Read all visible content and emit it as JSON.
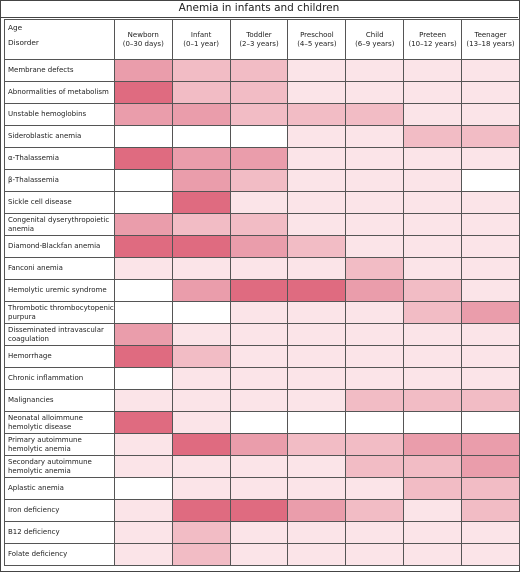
{
  "title": "Anemia in infants and children",
  "corner": {
    "top": "Age",
    "bottom": "Disorder"
  },
  "chart_data": {
    "type": "heatmap",
    "title": "Anemia in infants and children",
    "xlabel": "Age",
    "ylabel": "Disorder",
    "columns": [
      {
        "name": "Newborn",
        "range": "(0–30 days)"
      },
      {
        "name": "Infant",
        "range": "(0–1 year)"
      },
      {
        "name": "Toddler",
        "range": "(2–3 years)"
      },
      {
        "name": "Preschool",
        "range": "(4–5 years)"
      },
      {
        "name": "Child",
        "range": "(6–9 years)"
      },
      {
        "name": "Preteen",
        "range": "(10–12 years)"
      },
      {
        "name": "Teenager",
        "range": "(13–18 years)"
      }
    ],
    "rows": [
      {
        "label": "Membrane defects",
        "values": [
          3,
          2,
          2,
          1,
          1,
          1,
          1
        ]
      },
      {
        "label": "Abnormalities of metabolism",
        "values": [
          4,
          2,
          2,
          1,
          1,
          1,
          1
        ]
      },
      {
        "label": "Unstable hemoglobins",
        "values": [
          3,
          3,
          2,
          2,
          2,
          1,
          1
        ]
      },
      {
        "label": "Sideroblastic anemia",
        "values": [
          0,
          0,
          0,
          1,
          1,
          2,
          2
        ]
      },
      {
        "label": "α-Thalassemia",
        "values": [
          4,
          3,
          3,
          1,
          1,
          1,
          1
        ]
      },
      {
        "label": "β-Thalassemia",
        "values": [
          0,
          3,
          2,
          1,
          1,
          1,
          0
        ]
      },
      {
        "label": "Sickle cell disease",
        "values": [
          0,
          4,
          1,
          1,
          1,
          1,
          1
        ]
      },
      {
        "label": "Congenital dyserythropoietic anemia",
        "values": [
          3,
          2,
          2,
          1,
          1,
          1,
          1
        ]
      },
      {
        "label": "Diamond-Blackfan anemia",
        "values": [
          4,
          4,
          3,
          2,
          1,
          1,
          1
        ]
      },
      {
        "label": "Fanconi anemia",
        "values": [
          1,
          1,
          1,
          1,
          2,
          1,
          1
        ]
      },
      {
        "label": "Hemolytic uremic syndrome",
        "values": [
          0,
          3,
          4,
          4,
          3,
          2,
          1
        ]
      },
      {
        "label": "Thrombotic thrombocytopenic purpura",
        "values": [
          0,
          0,
          1,
          1,
          1,
          2,
          3
        ]
      },
      {
        "label": "Disseminated intravascular coagulation",
        "values": [
          3,
          1,
          1,
          1,
          1,
          1,
          1
        ]
      },
      {
        "label": "Hemorrhage",
        "values": [
          4,
          2,
          1,
          1,
          1,
          1,
          1
        ]
      },
      {
        "label": "Chronic inflammation",
        "values": [
          0,
          1,
          1,
          1,
          1,
          1,
          1
        ]
      },
      {
        "label": "Malignancies",
        "values": [
          1,
          1,
          1,
          1,
          2,
          2,
          2
        ]
      },
      {
        "label": "Neonatal alloimmune hemolytic disease",
        "values": [
          4,
          1,
          0,
          0,
          0,
          0,
          0
        ]
      },
      {
        "label": "Primary autoimmune hemolytic anemia",
        "values": [
          1,
          4,
          3,
          2,
          2,
          3,
          3
        ]
      },
      {
        "label": "Secondary autoimmune hemolytic anemia",
        "values": [
          1,
          1,
          1,
          1,
          2,
          2,
          3
        ]
      },
      {
        "label": "Aplastic anemia",
        "values": [
          0,
          1,
          1,
          1,
          1,
          2,
          2
        ]
      },
      {
        "label": "Iron deficiency",
        "values": [
          1,
          4,
          4,
          3,
          2,
          1,
          2
        ]
      },
      {
        "label": "B12 deficiency",
        "values": [
          1,
          2,
          1,
          1,
          1,
          1,
          1
        ]
      },
      {
        "label": "Folate deficiency",
        "values": [
          1,
          2,
          1,
          1,
          1,
          1,
          1
        ]
      }
    ],
    "scale": {
      "min": 0,
      "max": 4
    },
    "colors": [
      "#ffffff",
      "#fbe4e8",
      "#f2bcc5",
      "#ea9dab",
      "#df6b80"
    ],
    "grid": true,
    "legend": "none"
  }
}
